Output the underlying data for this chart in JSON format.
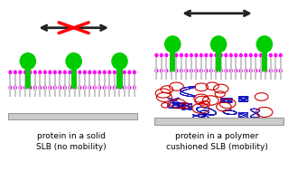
{
  "bg_color": "#ffffff",
  "protein_color": "#00cc00",
  "lipid_head_color": "#ff00ff",
  "lipid_tail_color": "#c8c8c8",
  "substrate_color": "#cccccc",
  "substrate_edge": "#999999",
  "arrow_color": "#222222",
  "cross_color": "#ff0000",
  "polymer_blue": "#0000bb",
  "polymer_red": "#cc0000",
  "label_left": "protein in a solid\nSLB (no mobility)",
  "label_right": "protein in a polymer\ncushioned SLB (mobility)",
  "label_fontsize": 6.5
}
